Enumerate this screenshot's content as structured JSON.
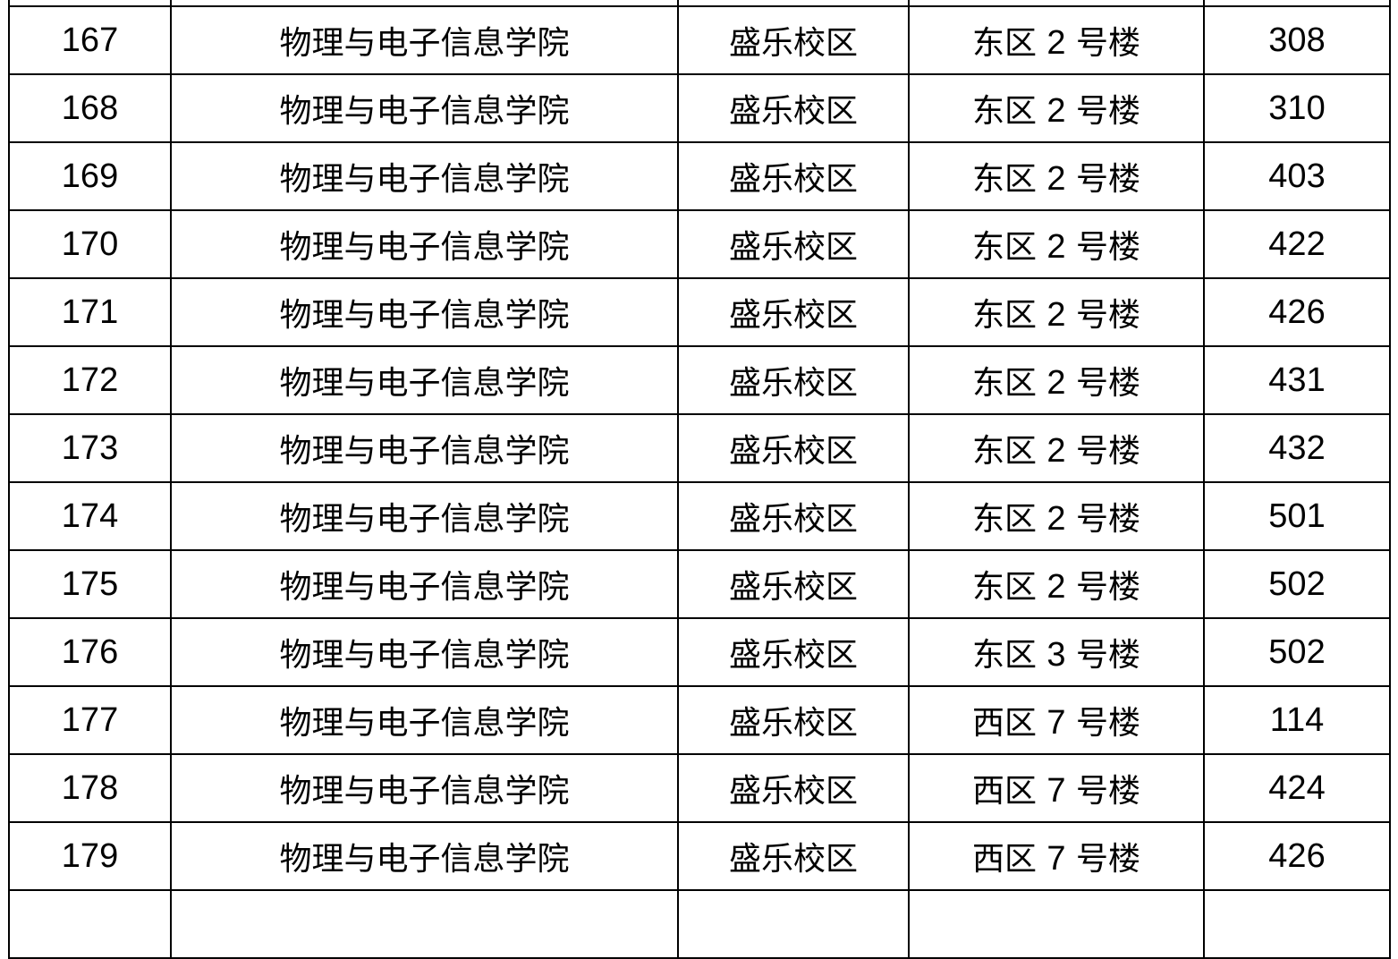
{
  "rows": [
    {
      "no": "167",
      "college": "物理与电子信息学院",
      "campus": "盛乐校区",
      "area": "东区",
      "building": "2",
      "suffix": "号楼",
      "room": "308"
    },
    {
      "no": "168",
      "college": "物理与电子信息学院",
      "campus": "盛乐校区",
      "area": "东区",
      "building": "2",
      "suffix": "号楼",
      "room": "310"
    },
    {
      "no": "169",
      "college": "物理与电子信息学院",
      "campus": "盛乐校区",
      "area": "东区",
      "building": "2",
      "suffix": "号楼",
      "room": "403"
    },
    {
      "no": "170",
      "college": "物理与电子信息学院",
      "campus": "盛乐校区",
      "area": "东区",
      "building": "2",
      "suffix": "号楼",
      "room": "422"
    },
    {
      "no": "171",
      "college": "物理与电子信息学院",
      "campus": "盛乐校区",
      "area": "东区",
      "building": "2",
      "suffix": "号楼",
      "room": "426"
    },
    {
      "no": "172",
      "college": "物理与电子信息学院",
      "campus": "盛乐校区",
      "area": "东区",
      "building": "2",
      "suffix": "号楼",
      "room": "431"
    },
    {
      "no": "173",
      "college": "物理与电子信息学院",
      "campus": "盛乐校区",
      "area": "东区",
      "building": "2",
      "suffix": "号楼",
      "room": "432"
    },
    {
      "no": "174",
      "college": "物理与电子信息学院",
      "campus": "盛乐校区",
      "area": "东区",
      "building": "2",
      "suffix": "号楼",
      "room": "501"
    },
    {
      "no": "175",
      "college": "物理与电子信息学院",
      "campus": "盛乐校区",
      "area": "东区",
      "building": "2",
      "suffix": "号楼",
      "room": "502"
    },
    {
      "no": "176",
      "college": "物理与电子信息学院",
      "campus": "盛乐校区",
      "area": "东区",
      "building": "3",
      "suffix": "号楼",
      "room": "502"
    },
    {
      "no": "177",
      "college": "物理与电子信息学院",
      "campus": "盛乐校区",
      "area": "西区",
      "building": "7",
      "suffix": "号楼",
      "room": "114"
    },
    {
      "no": "178",
      "college": "物理与电子信息学院",
      "campus": "盛乐校区",
      "area": "西区",
      "building": "7",
      "suffix": "号楼",
      "room": "424"
    },
    {
      "no": "179",
      "college": "物理与电子信息学院",
      "campus": "盛乐校区",
      "area": "西区",
      "building": "7",
      "suffix": "号楼",
      "room": "426"
    }
  ]
}
